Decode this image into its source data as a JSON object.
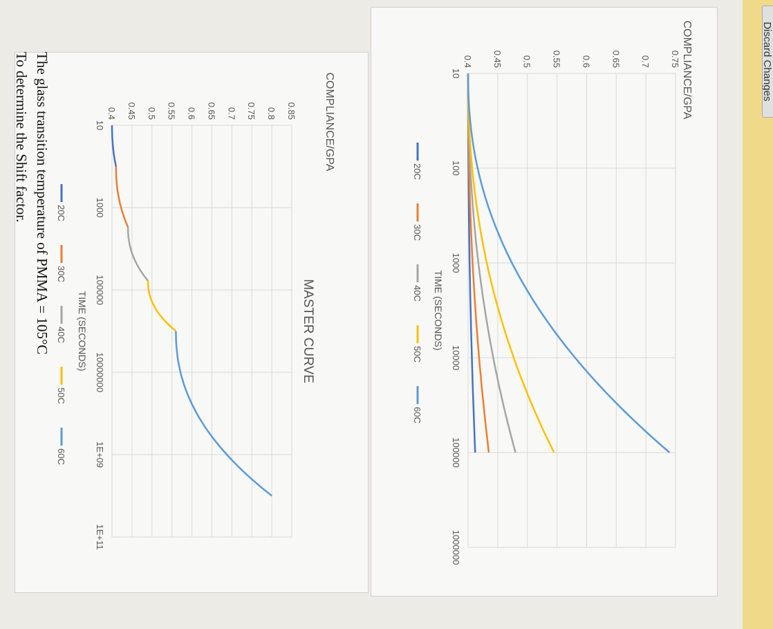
{
  "toolbar": {
    "discard_label": "Discard Changes"
  },
  "chart_data": [
    {
      "type": "line",
      "title": "",
      "xlabel": "TIME (SECONDS)",
      "ylabel": "COMPLIANCE/GPA",
      "xscale": "log",
      "xlim": [
        10,
        1000000
      ],
      "ylim": [
        0.4,
        0.75
      ],
      "xticks": [
        "10",
        "100",
        "1000",
        "10000",
        "100000",
        "1000000"
      ],
      "yticks": [
        "0.4",
        "0.45",
        "0.5",
        "0.55",
        "0.6",
        "0.65",
        "0.7",
        "0.75"
      ],
      "grid": true,
      "legend": "bottom",
      "series": [
        {
          "name": "20C",
          "color": "#4472c4",
          "x": [
            10,
            100000
          ],
          "y": [
            0.4,
            0.412
          ]
        },
        {
          "name": "30C",
          "color": "#ed7d31",
          "x": [
            10,
            100000
          ],
          "y": [
            0.4,
            0.435
          ]
        },
        {
          "name": "40C",
          "color": "#a5a5a5",
          "x": [
            10,
            100000
          ],
          "y": [
            0.4,
            0.48
          ]
        },
        {
          "name": "50C",
          "color": "#ffc000",
          "x": [
            10,
            100000
          ],
          "y": [
            0.4,
            0.545
          ]
        },
        {
          "name": "60C",
          "color": "#5b9bd5",
          "x": [
            10,
            100000
          ],
          "y": [
            0.4,
            0.74
          ]
        }
      ]
    },
    {
      "type": "line",
      "title": "MASTER CURVE",
      "xlabel": "TIME (SECONDS)",
      "ylabel": "COMPLIANCE/GPA",
      "xscale": "log",
      "xlim": [
        10,
        100000000000
      ],
      "ylim": [
        0.4,
        0.85
      ],
      "xticks": [
        "10",
        "1000",
        "100000",
        "10000000",
        "1E+09",
        "1E+11"
      ],
      "yticks": [
        "0.4",
        "0.45",
        "0.5",
        "0.55",
        "0.6",
        "0.65",
        "0.7",
        "0.75",
        "0.8",
        "0.85"
      ],
      "grid": true,
      "legend": "bottom",
      "series": [
        {
          "name": "20C",
          "color": "#4472c4",
          "x": [
            10,
            100
          ],
          "y": [
            0.4,
            0.41
          ]
        },
        {
          "name": "30C",
          "color": "#ed7d31",
          "x": [
            100,
            3000
          ],
          "y": [
            0.41,
            0.44
          ]
        },
        {
          "name": "40C",
          "color": "#a5a5a5",
          "x": [
            3000,
            60000
          ],
          "y": [
            0.44,
            0.49
          ]
        },
        {
          "name": "50C",
          "color": "#ffc000",
          "x": [
            60000,
            1000000
          ],
          "y": [
            0.49,
            0.56
          ]
        },
        {
          "name": "60C",
          "color": "#5b9bd5",
          "x": [
            1000000,
            10000000000
          ],
          "y": [
            0.56,
            0.8
          ]
        }
      ]
    }
  ],
  "text": {
    "line1": "The glass transition temperature of PMMA = 105°C",
    "line2": "To determine the Shift factor."
  }
}
